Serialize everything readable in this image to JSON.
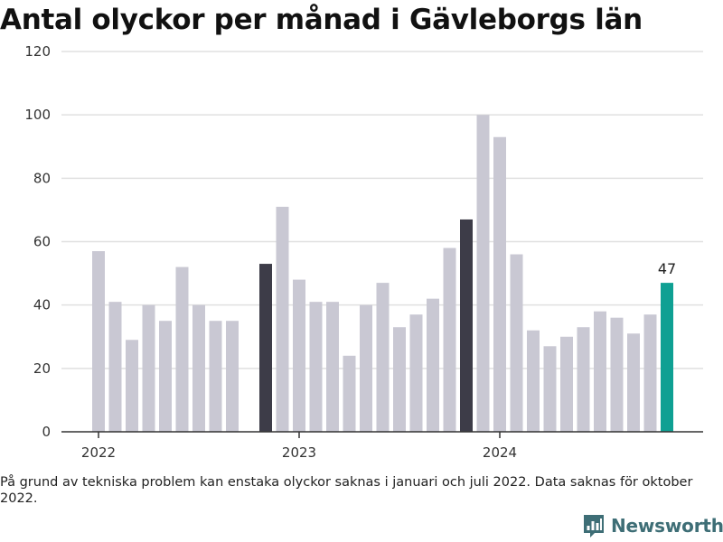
{
  "page": {
    "title": "Antal olyckor per månad i Gävleborgs län",
    "footnote": "På grund av tekniska problem kan enstaka olyckor saknas i januari och juli 2022. Data saknas för oktober 2022.",
    "brand": "Newsworthy"
  },
  "colors": {
    "default_bar": "#c9c8d3",
    "highlight_bar": "#3d3c48",
    "latest_bar": "#0fa093",
    "grid": "#e0e0e0",
    "axis": "#333333",
    "brand": "#3e6e76"
  },
  "chart_data": {
    "type": "bar",
    "title": "Antal olyckor per månad i Gävleborgs län",
    "xlabel": "",
    "ylabel": "",
    "ylim": [
      0,
      120
    ],
    "yticks": [
      0,
      20,
      40,
      60,
      80,
      100,
      120
    ],
    "xticks": [
      "2022",
      "2023",
      "2024"
    ],
    "grid": true,
    "categories": [
      "2022-01",
      "2022-02",
      "2022-03",
      "2022-04",
      "2022-05",
      "2022-06",
      "2022-07",
      "2022-08",
      "2022-09",
      "2022-10",
      "2022-11",
      "2022-12",
      "2023-01",
      "2023-02",
      "2023-03",
      "2023-04",
      "2023-05",
      "2023-06",
      "2023-07",
      "2023-08",
      "2023-09",
      "2023-10",
      "2023-11",
      "2023-12",
      "2024-01",
      "2024-02",
      "2024-03",
      "2024-04",
      "2024-05",
      "2024-06",
      "2024-07",
      "2024-08",
      "2024-09",
      "2024-10",
      "2024-11"
    ],
    "values": [
      57,
      41,
      29,
      40,
      35,
      52,
      40,
      35,
      35,
      null,
      53,
      71,
      48,
      41,
      41,
      24,
      40,
      47,
      33,
      37,
      42,
      58,
      67,
      100,
      93,
      56,
      32,
      27,
      30,
      33,
      38,
      36,
      31,
      37,
      47
    ],
    "highlight": [
      "2022-11",
      "2023-11"
    ],
    "latest": "2024-11",
    "data_labels": [
      {
        "category": "2024-11",
        "text": "47"
      }
    ]
  }
}
